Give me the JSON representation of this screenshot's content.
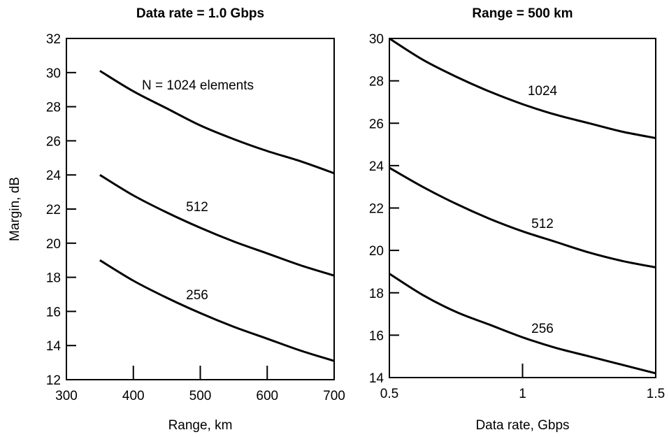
{
  "chart_data": [
    {
      "type": "line",
      "title": "Data rate = 1.0 Gbps",
      "xlabel": "Range, km",
      "ylabel": "Margin, dB",
      "xlim": [
        300,
        700
      ],
      "ylim": [
        12,
        32
      ],
      "xticks": [
        300,
        400,
        500,
        600,
        700
      ],
      "yticks": [
        12,
        14,
        16,
        18,
        20,
        22,
        24,
        26,
        28,
        30,
        32
      ],
      "series": [
        {
          "name": "N = 1024 elements",
          "label": "N = 1024 elements",
          "x": [
            350,
            400,
            450,
            500,
            550,
            600,
            650,
            700
          ],
          "y": [
            30.1,
            28.9,
            27.9,
            26.9,
            26.1,
            25.4,
            24.8,
            24.1
          ]
        },
        {
          "name": "512",
          "label": "512",
          "x": [
            350,
            400,
            450,
            500,
            550,
            600,
            650,
            700
          ],
          "y": [
            24.0,
            22.8,
            21.8,
            20.9,
            20.1,
            19.4,
            18.7,
            18.1
          ]
        },
        {
          "name": "256",
          "label": "256",
          "x": [
            350,
            400,
            450,
            500,
            550,
            600,
            650,
            700
          ],
          "y": [
            19.0,
            17.8,
            16.8,
            15.9,
            15.1,
            14.4,
            13.7,
            13.1
          ]
        }
      ]
    },
    {
      "type": "line",
      "title": "Range = 500 km",
      "xlabel": "Data rate, Gbps",
      "ylabel": "",
      "xlim": [
        0.5,
        1.5
      ],
      "ylim": [
        14,
        30
      ],
      "xticks": [
        0.5,
        1,
        1.5
      ],
      "yticks": [
        14,
        16,
        18,
        20,
        22,
        24,
        26,
        28,
        30
      ],
      "series": [
        {
          "name": "1024",
          "label": "1024",
          "x": [
            0.5,
            0.625,
            0.75,
            0.875,
            1.0,
            1.125,
            1.25,
            1.375,
            1.5
          ],
          "y": [
            30.0,
            29.0,
            28.2,
            27.5,
            26.9,
            26.4,
            26.0,
            25.6,
            25.3
          ]
        },
        {
          "name": "512",
          "label": "512",
          "x": [
            0.5,
            0.625,
            0.75,
            0.875,
            1.0,
            1.125,
            1.25,
            1.375,
            1.5
          ],
          "y": [
            23.9,
            23.0,
            22.2,
            21.5,
            20.9,
            20.4,
            19.9,
            19.5,
            19.2
          ]
        },
        {
          "name": "256",
          "label": "256",
          "x": [
            0.5,
            0.625,
            0.75,
            0.875,
            1.0,
            1.125,
            1.25,
            1.375,
            1.5
          ],
          "y": [
            18.9,
            17.9,
            17.1,
            16.5,
            15.9,
            15.4,
            15.0,
            14.6,
            14.2
          ]
        }
      ]
    }
  ]
}
